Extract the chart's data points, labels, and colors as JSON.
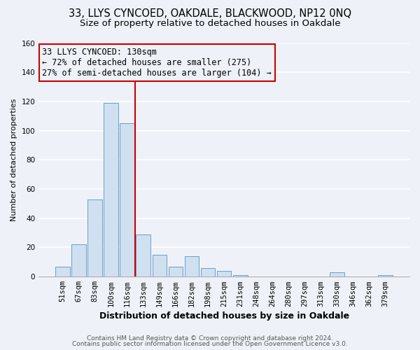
{
  "title1": "33, LLYS CYNCOED, OAKDALE, BLACKWOOD, NP12 0NQ",
  "title2": "Size of property relative to detached houses in Oakdale",
  "xlabel": "Distribution of detached houses by size in Oakdale",
  "ylabel": "Number of detached properties",
  "bar_labels": [
    "51sqm",
    "67sqm",
    "83sqm",
    "100sqm",
    "116sqm",
    "133sqm",
    "149sqm",
    "166sqm",
    "182sqm",
    "198sqm",
    "215sqm",
    "231sqm",
    "248sqm",
    "264sqm",
    "280sqm",
    "297sqm",
    "313sqm",
    "330sqm",
    "346sqm",
    "362sqm",
    "379sqm"
  ],
  "bar_heights": [
    7,
    22,
    53,
    119,
    105,
    29,
    15,
    7,
    14,
    6,
    4,
    1,
    0,
    0,
    0,
    0,
    0,
    3,
    0,
    0,
    1
  ],
  "bar_color": "#cfe0f0",
  "bar_edge_color": "#6a9fc8",
  "vline_color": "#cc0000",
  "annotation_title": "33 LLYS CYNCOED: 130sqm",
  "annotation_line1": "← 72% of detached houses are smaller (275)",
  "annotation_line2": "27% of semi-detached houses are larger (104) →",
  "annotation_box_edge": "#cc0000",
  "ylim": [
    0,
    160
  ],
  "yticks": [
    0,
    20,
    40,
    60,
    80,
    100,
    120,
    140,
    160
  ],
  "footer1": "Contains HM Land Registry data © Crown copyright and database right 2024.",
  "footer2": "Contains public sector information licensed under the Open Government Licence v3.0.",
  "bg_color": "#eef2f8",
  "grid_color": "#ffffff",
  "title1_fontsize": 10.5,
  "title2_fontsize": 9.5,
  "xlabel_fontsize": 9,
  "ylabel_fontsize": 8,
  "tick_fontsize": 7.5,
  "annotation_fontsize": 8.5,
  "footer_fontsize": 6.5
}
